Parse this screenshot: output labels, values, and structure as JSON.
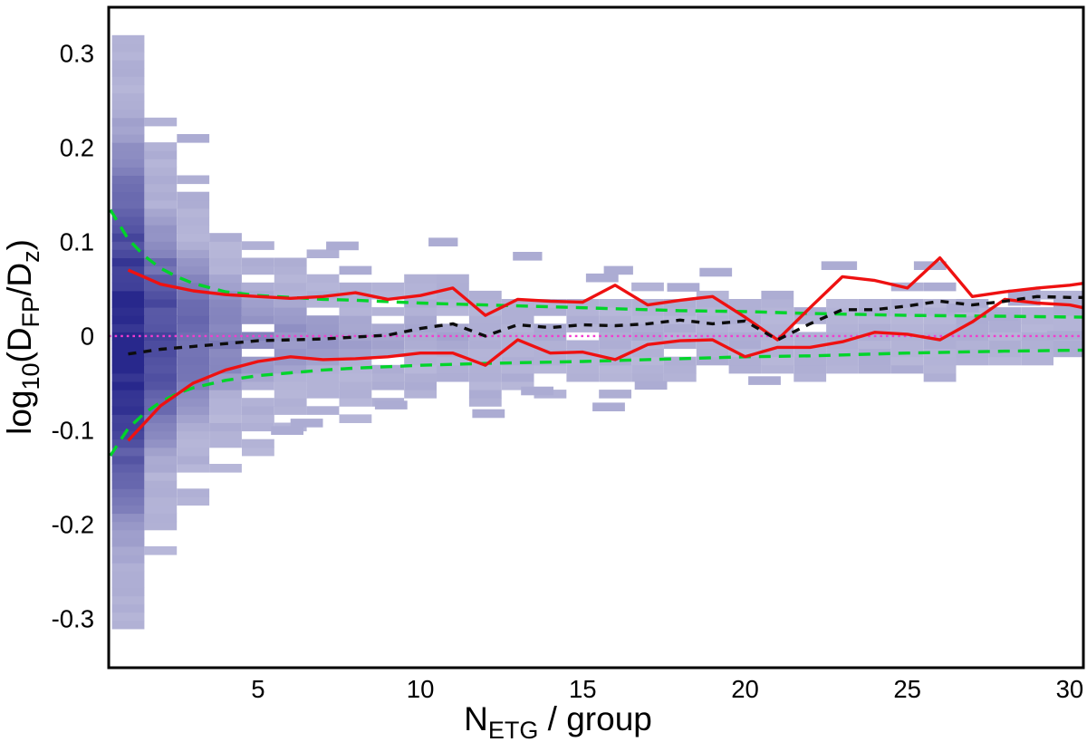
{
  "figure": {
    "background": "#ffffff"
  },
  "chart_data": {
    "type": "heatmap",
    "title": "",
    "xlabel": [
      {
        "text": "N",
        "sub": false
      },
      {
        "text": "ETG",
        "sub": true
      },
      {
        "text": " / group",
        "sub": false
      }
    ],
    "ylabel": [
      {
        "text": "log",
        "sub": false
      },
      {
        "text": "10",
        "sub": true
      },
      {
        "text": "(D",
        "sub": false
      },
      {
        "text": "FP",
        "sub": true
      },
      {
        "text": "/D",
        "sub": false
      },
      {
        "text": "z",
        "sub": true
      },
      {
        "text": ")",
        "sub": false
      }
    ],
    "xlim": [
      0.4,
      30.42
    ],
    "ylim": [
      -0.352,
      0.349
    ],
    "x_ticks": [
      {
        "value": 5,
        "label": "5"
      },
      {
        "value": 10,
        "label": "10"
      },
      {
        "value": 15,
        "label": "15"
      },
      {
        "value": 20,
        "label": "20"
      },
      {
        "value": 25,
        "label": "25"
      },
      {
        "value": 30,
        "label": "30"
      }
    ],
    "y_ticks": [
      {
        "value": 0.3,
        "label": "0.3"
      },
      {
        "value": 0.2,
        "label": "0.2"
      },
      {
        "value": 0.1,
        "label": "0.1"
      },
      {
        "value": 0,
        "label": "0"
      },
      {
        "value": -0.1,
        "label": "-0.1"
      },
      {
        "value": -0.2,
        "label": "-0.2"
      },
      {
        "value": -0.3,
        "label": "-0.3"
      }
    ],
    "grid": false,
    "legend": "none",
    "colors": {
      "red": "#ee1111",
      "green": "#00d42a",
      "black": "#0d0d0d",
      "magenta": "#f23cce",
      "heat_base": "#28288c",
      "frame": "#000000"
    },
    "histogram": {
      "bin_height": 0.00875,
      "column_width": 1.0,
      "columns": [
        {
          "n": 1,
          "sigma": 0.15,
          "peak": 1.0,
          "solid": 0.31,
          "upper": 0.315,
          "lower": -0.305
        },
        {
          "n": 2,
          "sigma": 0.095,
          "peak": 0.8,
          "solid": 0.165,
          "upper": 0.25,
          "lower": -0.25
        },
        {
          "n": 3,
          "sigma": 0.075,
          "peak": 0.62,
          "solid": 0.1,
          "upper": 0.22,
          "lower": -0.235
        },
        {
          "n": 4,
          "sigma": 0.06,
          "peak": 0.5,
          "solid": 0.085,
          "upper": 0.165,
          "lower": -0.155
        },
        {
          "n": 5,
          "sigma": 0.052,
          "peak": 0.44,
          "solid": 0.065,
          "upper": 0.145,
          "lower": -0.12
        },
        {
          "n": 6,
          "sigma": 0.046,
          "peak": 0.4,
          "solid": 0.055,
          "upper": 0.13,
          "lower": -0.105
        },
        {
          "n": 7,
          "sigma": 0.042,
          "peak": 0.37,
          "solid": 0.05,
          "upper": 0.1,
          "lower": -0.095
        },
        {
          "n": 8,
          "sigma": 0.039,
          "peak": 0.34,
          "solid": 0.045,
          "upper": 0.1,
          "lower": -0.09
        },
        {
          "n": 9,
          "sigma": 0.037,
          "peak": 0.32,
          "solid": 0.04,
          "upper": 0.085,
          "lower": -0.075
        },
        {
          "n": 10,
          "sigma": 0.035,
          "peak": 0.31,
          "solid": 0.035,
          "upper": 0.09,
          "lower": -0.07
        },
        {
          "n": 11,
          "sigma": 0.033,
          "peak": 0.3,
          "solid": 0.03,
          "upper": 0.065,
          "lower": -0.06
        },
        {
          "n": 12,
          "sigma": 0.032,
          "peak": 0.29,
          "solid": 0.028,
          "upper": 0.06,
          "lower": -0.08
        },
        {
          "n": 13,
          "sigma": 0.031,
          "peak": 0.29,
          "solid": 0.026,
          "upper": 0.09,
          "lower": -0.065
        },
        {
          "n": 14,
          "sigma": 0.03,
          "peak": 0.28,
          "solid": 0.025,
          "upper": 0.06,
          "lower": -0.06
        },
        {
          "n": 15,
          "sigma": 0.029,
          "peak": 0.28,
          "solid": 0.024,
          "upper": 0.055,
          "lower": -0.06
        },
        {
          "n": 16,
          "sigma": 0.029,
          "peak": 0.28,
          "solid": 0.023,
          "upper": 0.07,
          "lower": -0.075
        },
        {
          "n": 17,
          "sigma": 0.028,
          "peak": 0.27,
          "solid": 0.022,
          "upper": 0.055,
          "lower": -0.05
        },
        {
          "n": 18,
          "sigma": 0.028,
          "peak": 0.27,
          "solid": 0.021,
          "upper": 0.06,
          "lower": -0.05
        },
        {
          "n": 19,
          "sigma": 0.027,
          "peak": 0.27,
          "solid": 0.02,
          "upper": 0.065,
          "lower": -0.045
        },
        {
          "n": 20,
          "sigma": 0.027,
          "peak": 0.27,
          "solid": 0.02,
          "upper": 0.055,
          "lower": -0.045
        },
        {
          "n": 21,
          "sigma": 0.026,
          "peak": 0.26,
          "solid": 0.018,
          "upper": 0.05,
          "lower": -0.04
        },
        {
          "n": 22,
          "sigma": 0.026,
          "peak": 0.26,
          "solid": 0.018,
          "upper": 0.065,
          "lower": -0.04
        },
        {
          "n": 23,
          "sigma": 0.026,
          "peak": 0.26,
          "solid": 0.018,
          "upper": 0.075,
          "lower": -0.04
        },
        {
          "n": 24,
          "sigma": 0.025,
          "peak": 0.26,
          "solid": 0.016,
          "upper": 0.05,
          "lower": -0.035
        },
        {
          "n": 25,
          "sigma": 0.025,
          "peak": 0.26,
          "solid": 0.016,
          "upper": 0.06,
          "lower": -0.035
        },
        {
          "n": 26,
          "sigma": 0.025,
          "peak": 0.26,
          "solid": 0.016,
          "upper": 0.09,
          "lower": -0.04
        },
        {
          "n": 27,
          "sigma": 0.024,
          "peak": 0.26,
          "solid": 0.015,
          "upper": 0.05,
          "lower": -0.03
        },
        {
          "n": 28,
          "sigma": 0.024,
          "peak": 0.26,
          "solid": 0.015,
          "upper": 0.055,
          "lower": -0.03
        },
        {
          "n": 29,
          "sigma": 0.024,
          "peak": 0.26,
          "solid": 0.015,
          "upper": 0.05,
          "lower": -0.025
        },
        {
          "n": 30,
          "sigma": 0.024,
          "peak": 0.26,
          "solid": 0.012,
          "upper": 0.05,
          "lower": -0.02
        }
      ],
      "outlier_cells": [
        [
          5.9,
          -0.1,
          1
        ],
        [
          6.5,
          -0.092,
          1
        ],
        [
          7.6,
          0.096,
          1
        ],
        [
          9.1,
          -0.073,
          1
        ],
        [
          10.7,
          0.1,
          0.9
        ],
        [
          12.1,
          -0.082,
          1
        ],
        [
          13.3,
          0.085,
          0.9
        ],
        [
          13.6,
          -0.058,
          1
        ],
        [
          15.6,
          0.062,
          1
        ],
        [
          15.8,
          -0.075,
          1
        ],
        [
          16.1,
          0.07,
          0.9
        ],
        [
          17.1,
          -0.052,
          1
        ],
        [
          18.1,
          0.052,
          1
        ],
        [
          19.1,
          0.068,
          1
        ],
        [
          20.6,
          -0.047,
          1
        ],
        [
          22.9,
          0.075,
          1.1
        ],
        [
          25.7,
          0.075,
          1.0
        ],
        [
          26.7,
          0.03,
          1
        ],
        [
          27.9,
          0.021,
          1
        ],
        [
          28.6,
          0.045,
          1
        ],
        [
          28.6,
          0.037,
          1
        ],
        [
          29.9,
          0.001,
          1.2
        ]
      ]
    },
    "series": [
      {
        "name": "model-upper-green",
        "color_key": "green",
        "style": "dashed",
        "width": 3.4,
        "points": [
          [
            0.45,
            0.134
          ],
          [
            1,
            0.103
          ],
          [
            1.5,
            0.085
          ],
          [
            2,
            0.072
          ],
          [
            2.5,
            0.063
          ],
          [
            3,
            0.056
          ],
          [
            4,
            0.047
          ],
          [
            5,
            0.043
          ],
          [
            6,
            0.041
          ],
          [
            7,
            0.039
          ],
          [
            8,
            0.038
          ],
          [
            10,
            0.035
          ],
          [
            12,
            0.033
          ],
          [
            15,
            0.03
          ],
          [
            18,
            0.027
          ],
          [
            20,
            0.026
          ],
          [
            22,
            0.024
          ],
          [
            25,
            0.022
          ],
          [
            28,
            0.021
          ],
          [
            30.42,
            0.02
          ]
        ]
      },
      {
        "name": "model-lower-green",
        "color_key": "green",
        "style": "dashed",
        "width": 3.4,
        "points": [
          [
            0.45,
            -0.127
          ],
          [
            1,
            -0.098
          ],
          [
            1.5,
            -0.082
          ],
          [
            2,
            -0.07
          ],
          [
            2.5,
            -0.061
          ],
          [
            3,
            -0.055
          ],
          [
            4,
            -0.047
          ],
          [
            5,
            -0.042
          ],
          [
            6,
            -0.039
          ],
          [
            7,
            -0.036
          ],
          [
            8,
            -0.034
          ],
          [
            10,
            -0.031
          ],
          [
            12,
            -0.029
          ],
          [
            15,
            -0.027
          ],
          [
            18,
            -0.024
          ],
          [
            20,
            -0.022
          ],
          [
            22,
            -0.021
          ],
          [
            25,
            -0.018
          ],
          [
            28,
            -0.016
          ],
          [
            30.42,
            -0.015
          ]
        ]
      },
      {
        "name": "zero-line-magenta",
        "color_key": "magenta",
        "style": "dotted",
        "width": 2.4,
        "points": [
          [
            0.4,
            0
          ],
          [
            30.42,
            0
          ]
        ]
      },
      {
        "name": "scatter-upper-red",
        "color_key": "red",
        "style": "solid",
        "width": 3.4,
        "points": [
          [
            1,
            0.07
          ],
          [
            2,
            0.055
          ],
          [
            3,
            0.048
          ],
          [
            4,
            0.044
          ],
          [
            5,
            0.042
          ],
          [
            6,
            0.04
          ],
          [
            7,
            0.042
          ],
          [
            8,
            0.046
          ],
          [
            9,
            0.039
          ],
          [
            10,
            0.043
          ],
          [
            11,
            0.051
          ],
          [
            12,
            0.022
          ],
          [
            13,
            0.039
          ],
          [
            14,
            0.037
          ],
          [
            15,
            0.036
          ],
          [
            16,
            0.054
          ],
          [
            17,
            0.033
          ],
          [
            18,
            0.038
          ],
          [
            19,
            0.042
          ],
          [
            20,
            0.02
          ],
          [
            21,
            -0.004
          ],
          [
            22,
            0.03
          ],
          [
            23,
            0.063
          ],
          [
            24,
            0.059
          ],
          [
            25,
            0.051
          ],
          [
            26,
            0.083
          ],
          [
            27,
            0.042
          ],
          [
            28,
            0.047
          ],
          [
            29,
            0.051
          ],
          [
            30,
            0.054
          ],
          [
            30.42,
            0.056
          ]
        ]
      },
      {
        "name": "scatter-lower-red",
        "color_key": "red",
        "style": "solid",
        "width": 3.4,
        "points": [
          [
            1,
            -0.111
          ],
          [
            2,
            -0.074
          ],
          [
            3,
            -0.05
          ],
          [
            4,
            -0.036
          ],
          [
            5,
            -0.027
          ],
          [
            6,
            -0.022
          ],
          [
            7,
            -0.025
          ],
          [
            8,
            -0.024
          ],
          [
            9,
            -0.022
          ],
          [
            10,
            -0.018
          ],
          [
            11,
            -0.018
          ],
          [
            12,
            -0.031
          ],
          [
            13,
            -0.004
          ],
          [
            14,
            -0.018
          ],
          [
            15,
            -0.017
          ],
          [
            16,
            -0.025
          ],
          [
            17,
            -0.009
          ],
          [
            18,
            -0.005
          ],
          [
            19,
            -0.004
          ],
          [
            20,
            -0.022
          ],
          [
            21,
            -0.012
          ],
          [
            22,
            -0.012
          ],
          [
            23,
            -0.006
          ],
          [
            24,
            0.004
          ],
          [
            25,
            0.002
          ],
          [
            26,
            -0.004
          ],
          [
            27,
            0.015
          ],
          [
            28,
            0.039
          ],
          [
            29,
            0.035
          ],
          [
            30,
            0.033
          ],
          [
            30.42,
            0.03
          ]
        ]
      },
      {
        "name": "median-black",
        "color_key": "black",
        "style": "dashed_short",
        "width": 3.4,
        "points": [
          [
            1,
            -0.019
          ],
          [
            2,
            -0.014
          ],
          [
            3,
            -0.011
          ],
          [
            4,
            -0.008
          ],
          [
            5,
            -0.005
          ],
          [
            6,
            -0.004
          ],
          [
            7,
            -0.003
          ],
          [
            8,
            -0.001
          ],
          [
            9,
            0.001
          ],
          [
            10,
            0.008
          ],
          [
            11,
            0.013
          ],
          [
            12,
            0.0
          ],
          [
            13,
            0.012
          ],
          [
            14,
            0.009
          ],
          [
            15,
            0.012
          ],
          [
            16,
            0.011
          ],
          [
            17,
            0.013
          ],
          [
            18,
            0.017
          ],
          [
            19,
            0.013
          ],
          [
            20,
            0.016
          ],
          [
            21,
            -0.004
          ],
          [
            22,
            0.013
          ],
          [
            23,
            0.028
          ],
          [
            24,
            0.028
          ],
          [
            25,
            0.032
          ],
          [
            26,
            0.037
          ],
          [
            27,
            0.033
          ],
          [
            28,
            0.037
          ],
          [
            29,
            0.042
          ],
          [
            30,
            0.041
          ],
          [
            30.42,
            0.041
          ]
        ]
      }
    ]
  }
}
